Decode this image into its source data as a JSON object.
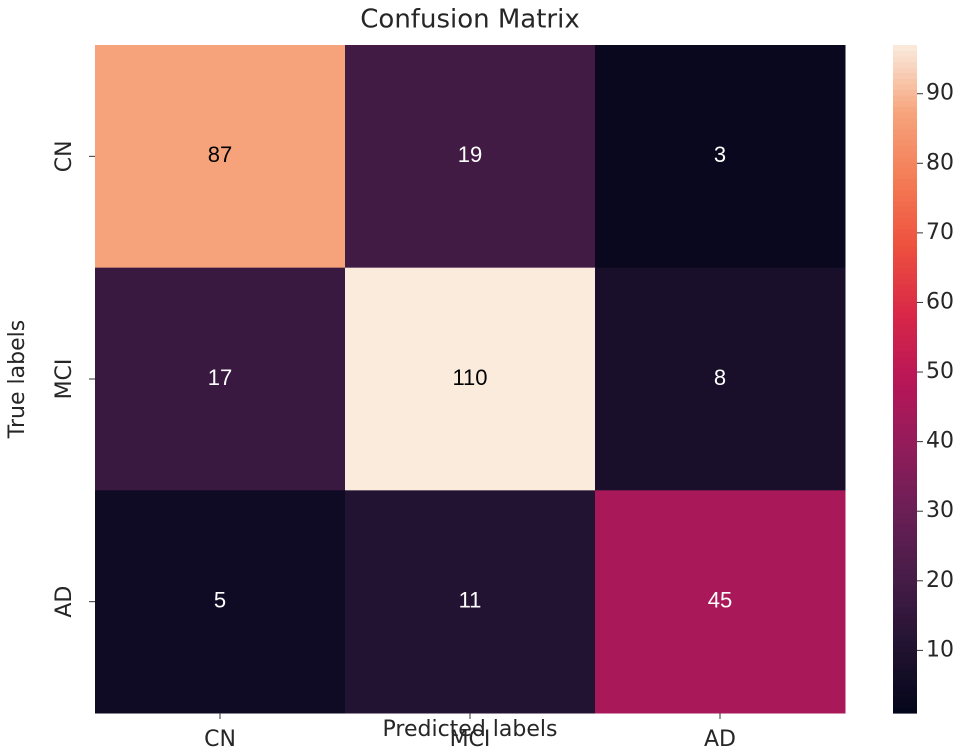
{
  "chart_data": {
    "type": "heatmap",
    "title": "Confusion Matrix",
    "xlabel": "Predicted labels",
    "ylabel": "True labels",
    "x_categories": [
      "CN",
      "MCI",
      "AD"
    ],
    "y_categories": [
      "CN",
      "MCI",
      "AD"
    ],
    "values": [
      [
        87,
        19,
        3
      ],
      [
        17,
        110,
        8
      ],
      [
        5,
        11,
        45
      ]
    ],
    "zlim": [
      1,
      97
    ],
    "zticks": [
      10,
      20,
      30,
      40,
      50,
      60,
      70,
      80,
      90
    ],
    "colormap": [
      "#03051a",
      "#221331",
      "#451c47",
      "#691f55",
      "#921c5b",
      "#b91657",
      "#d92847",
      "#ed513e",
      "#f47c56",
      "#f6a47c",
      "#faebdd"
    ]
  }
}
